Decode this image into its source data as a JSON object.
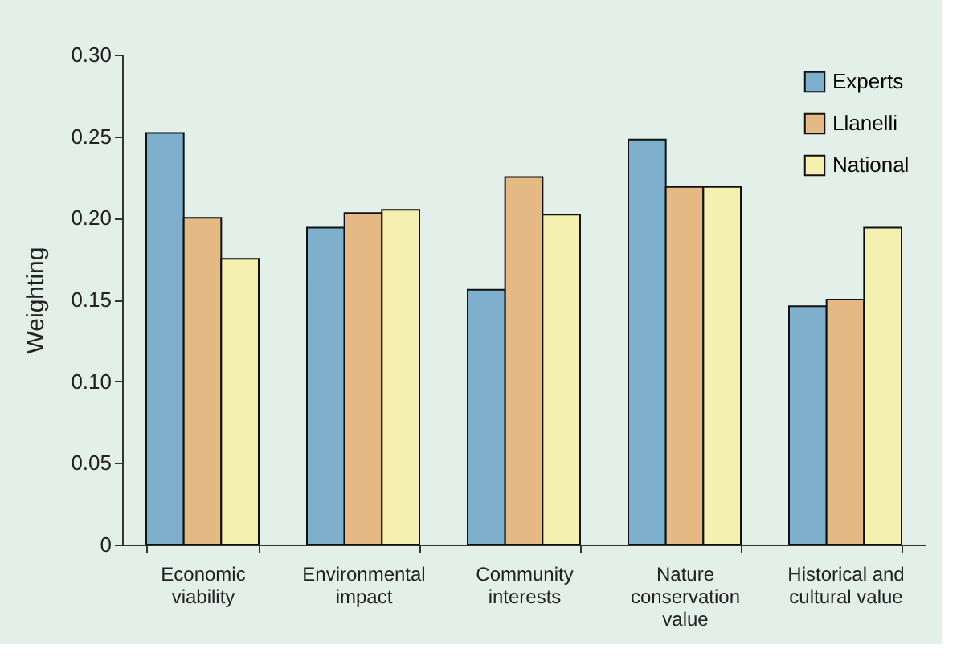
{
  "chart_data": {
    "type": "bar",
    "ylabel": "Weighting",
    "categories": [
      "Economic\nviability",
      "Environmental\nimpact",
      "Community\ninterests",
      "Nature\nconservation\nvalue",
      "Historical and\ncultural value"
    ],
    "series": [
      {
        "name": "Experts",
        "color": "#7eafcd",
        "values": [
          0.252,
          0.194,
          0.156,
          0.248,
          0.146
        ]
      },
      {
        "name": "Llanelli",
        "color": "#e5b983",
        "values": [
          0.2,
          0.203,
          0.225,
          0.219,
          0.15
        ]
      },
      {
        "name": "National",
        "color": "#f4f1b0",
        "values": [
          0.175,
          0.205,
          0.202,
          0.219,
          0.194
        ]
      }
    ],
    "ylim": [
      0,
      0.3
    ],
    "yticks": [
      {
        "value": 0,
        "label": "0"
      },
      {
        "value": 0.05,
        "label": "0.05"
      },
      {
        "value": 0.1,
        "label": "0.10"
      },
      {
        "value": 0.15,
        "label": "0.15"
      },
      {
        "value": 0.2,
        "label": "0.20"
      },
      {
        "value": 0.25,
        "label": "0.25"
      },
      {
        "value": 0.3,
        "label": "0.30"
      }
    ],
    "grid": false,
    "legend": "top right"
  }
}
